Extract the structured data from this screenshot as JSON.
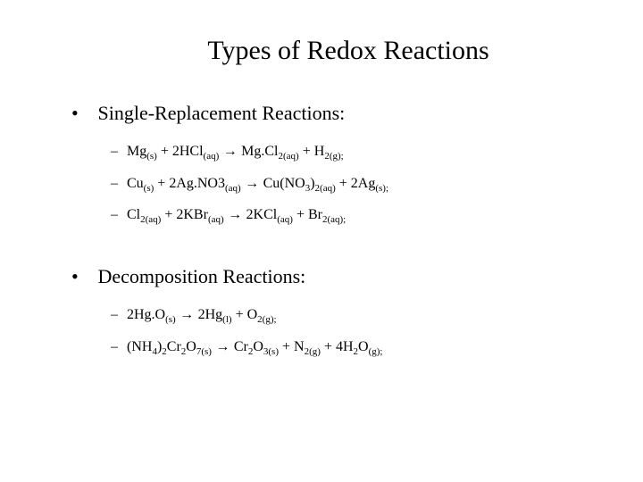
{
  "colors": {
    "bg": "#ffffff",
    "text": "#000000"
  },
  "title": "Types of Redox Reactions",
  "sections": [
    {
      "heading": "Single-Replacement Reactions:",
      "items": [
        {
          "tokens": [
            {
              "t": "Mg",
              "sub": "",
              "ph": "(s)"
            },
            {
              "t": "  +  "
            },
            {
              "t": "2",
              "sub": "",
              "ph": ""
            },
            {
              "t": "HCl",
              "sub": "",
              "ph": "(aq)"
            },
            {
              "t": "  ",
              "arrow": true
            },
            {
              "t": "  "
            },
            {
              "t": "Mg.Cl",
              "sub": "2",
              "ph": "(aq)"
            },
            {
              "t": "  +  "
            },
            {
              "t": "H",
              "sub": "2",
              "ph": "(g);"
            }
          ]
        },
        {
          "tokens": [
            {
              "t": "Cu",
              "sub": "",
              "ph": "(s)"
            },
            {
              "t": "  +  "
            },
            {
              "t": "2",
              "sub": "",
              "ph": ""
            },
            {
              "t": "Ag.NO",
              "sub": "",
              "ph": ""
            },
            {
              "t": "3",
              "sub": "",
              "ph": "(aq)"
            },
            {
              "t": "  ",
              "arrow": true
            },
            {
              "t": "   "
            },
            {
              "t": "Cu(NO",
              "sub": "3",
              "ph": ""
            },
            {
              "t": ")",
              "sub": "2",
              "ph": "(aq)"
            },
            {
              "t": "  +  "
            },
            {
              "t": "2",
              "sub": "",
              "ph": ""
            },
            {
              "t": "Ag",
              "sub": "",
              "ph": "(s);"
            }
          ]
        },
        {
          "tokens": [
            {
              "t": "Cl",
              "sub": "2",
              "ph": "(aq)"
            },
            {
              "t": "  +  "
            },
            {
              "t": "2",
              "sub": "",
              "ph": ""
            },
            {
              "t": "KBr",
              "sub": "",
              "ph": "(aq)"
            },
            {
              "t": "  ",
              "arrow": true
            },
            {
              "t": "   "
            },
            {
              "t": "2",
              "sub": "",
              "ph": ""
            },
            {
              "t": "KCl",
              "sub": "",
              "ph": "(aq)"
            },
            {
              "t": "  +  "
            },
            {
              "t": "Br",
              "sub": "2",
              "ph": "(aq);"
            }
          ]
        }
      ]
    },
    {
      "heading": "Decomposition Reactions:",
      "items": [
        {
          "tokens": [
            {
              "t": "2",
              "sub": "",
              "ph": ""
            },
            {
              "t": "Hg.O",
              "sub": "",
              "ph": "(s)"
            },
            {
              "t": "  ",
              "arrow": true
            },
            {
              "t": "   "
            },
            {
              "t": "2",
              "sub": "",
              "ph": ""
            },
            {
              "t": "Hg",
              "sub": "",
              "ph": "(l)"
            },
            {
              "t": "  +  "
            },
            {
              "t": "O",
              "sub": "2",
              "ph": "(g);"
            }
          ]
        },
        {
          "tokens": [
            {
              "t": "(NH",
              "sub": "4",
              "ph": ""
            },
            {
              "t": ")",
              "sub": "2",
              "ph": ""
            },
            {
              "t": "Cr",
              "sub": "2",
              "ph": ""
            },
            {
              "t": "O",
              "sub": "7",
              "ph": "(s)"
            },
            {
              "t": "  ",
              "arrow": true
            },
            {
              "t": "   "
            },
            {
              "t": "Cr",
              "sub": "2",
              "ph": ""
            },
            {
              "t": "O",
              "sub": "3",
              "ph": "(s)"
            },
            {
              "t": "  +  "
            },
            {
              "t": "N",
              "sub": "2",
              "ph": "(g)"
            },
            {
              "t": "  +  "
            },
            {
              "t": "4",
              "sub": "",
              "ph": ""
            },
            {
              "t": "H",
              "sub": "2",
              "ph": ""
            },
            {
              "t": "O",
              "sub": "",
              "ph": "(g);"
            }
          ]
        }
      ]
    }
  ],
  "arrow_glyph": "→"
}
